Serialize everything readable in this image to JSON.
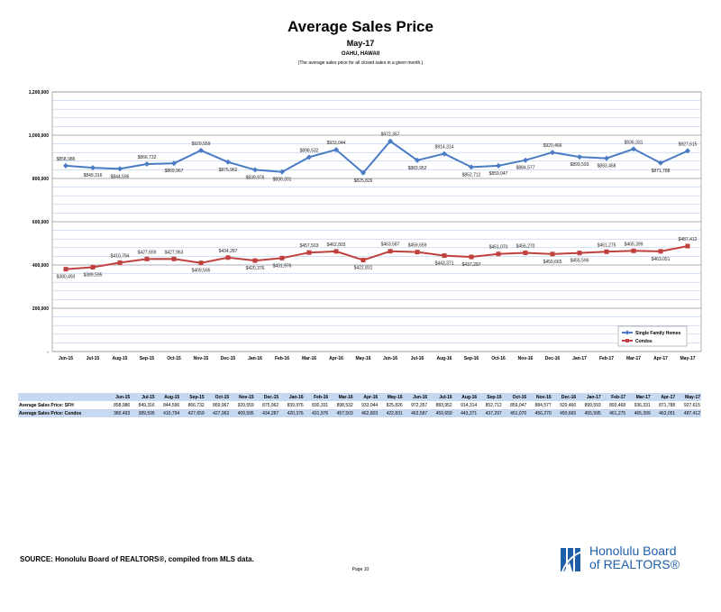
{
  "header": {
    "title": "Average Sales Price",
    "subtitle": "May-17",
    "region": "OAHU, HAWAII",
    "description": "(The average sales price for all closed sales in a given month.)"
  },
  "chart_data": {
    "type": "line",
    "title": "Average Sales Price",
    "categories": [
      "Jun-15",
      "Jul-15",
      "Aug-15",
      "Sep-15",
      "Oct-15",
      "Nov-15",
      "Dec-15",
      "Jan-16",
      "Feb-16",
      "Mar-16",
      "Apr-16",
      "May-16",
      "Jun-16",
      "Jul-16",
      "Aug-16",
      "Sep-16",
      "Oct-16",
      "Nov-16",
      "Dec-16",
      "Jan-17",
      "Feb-17",
      "Mar-17",
      "Apr-17",
      "May-17"
    ],
    "ylim": [
      0,
      1200000
    ],
    "yticks": [
      0,
      200000,
      400000,
      600000,
      800000,
      1000000,
      1200000
    ],
    "ytick_labels": [
      "-",
      "200,000",
      "400,000",
      "600,000",
      "800,000",
      "1,000,000",
      "1,200,000"
    ],
    "legend_position": "lower-right",
    "grid": true,
    "series": [
      {
        "name": "Single Family Homes",
        "color": "#4a7bc4",
        "marker": "diamond",
        "values": [
          858986,
          849316,
          844596,
          866732,
          869967,
          929559,
          875962,
          839976,
          830331,
          898532,
          933044,
          825826,
          972357,
          883952,
          914314,
          852712,
          859047,
          884577,
          920466,
          899593,
          893468,
          936331,
          871788,
          927615
        ],
        "labels": [
          "$858,986",
          "$849,316",
          "$844,596",
          "$866,732",
          "$869,967",
          "$929,559",
          "$875,962",
          "$839,976",
          "$830,331",
          "$898,532",
          "$933,044",
          "$825,826",
          "$972,357",
          "$883,952",
          "$914,314",
          "$852,712",
          "$859,047",
          "$884,577",
          "$920,466",
          "$899,593",
          "$893,468",
          "$936,331",
          "$871,788",
          "$927,615"
        ]
      },
      {
        "name": "Condos",
        "color": "#c0403d",
        "marker": "square",
        "values": [
          380493,
          389595,
          410794,
          427659,
          427963,
          409595,
          434287,
          420376,
          431976,
          457503,
          462803,
          422831,
          463587,
          459659,
          443371,
          437297,
          451070,
          456270,
          450665,
          455595,
          461275,
          465399,
          463051,
          487412
        ],
        "labels": [
          "$380,493",
          "$389,595",
          "$410,794",
          "$427,659",
          "$427,963",
          "$409,595",
          "$434,287",
          "$420,376",
          "$431,976",
          "$457,503",
          "$462,803",
          "$422,831",
          "$463,587",
          "$459,659",
          "$443,371",
          "$437,297",
          "$451,070",
          "$456,270",
          "$450,665",
          "$455,595",
          "$461,275",
          "$465,399",
          "$463,051",
          "$487,412"
        ]
      }
    ]
  },
  "table": {
    "columns": [
      "Jun-15",
      "Jul-15",
      "Aug-15",
      "Sep-15",
      "Oct-15",
      "Nov-15",
      "Dec-15",
      "Jan-16",
      "Feb-16",
      "Mar-16",
      "Apr-16",
      "May-16",
      "Jun-16",
      "Jul-16",
      "Aug-16",
      "Sep-16",
      "Oct-16",
      "Nov-16",
      "Dec-16",
      "Jan-17",
      "Feb-17",
      "Mar-17",
      "Apr-17",
      "May-17"
    ],
    "rows": [
      {
        "label": "Average Sales Price: SFH",
        "cells": [
          "858,986",
          "849,316",
          "844,596",
          "866,732",
          "869,967",
          "929,559",
          "875,962",
          "839,976",
          "830,331",
          "898,532",
          "933,044",
          "825,826",
          "972,357",
          "883,952",
          "914,314",
          "852,712",
          "859,047",
          "884,577",
          "920,466",
          "899,593",
          "893,468",
          "936,331",
          "871,788",
          "927,615"
        ]
      },
      {
        "label": "Average Sales Price: Condos",
        "cells": [
          "380,493",
          "389,595",
          "410,794",
          "427,659",
          "427,963",
          "409,595",
          "434,287",
          "420,376",
          "431,976",
          "457,503",
          "462,803",
          "422,831",
          "463,587",
          "459,659",
          "443,371",
          "437,297",
          "451,070",
          "456,270",
          "450,665",
          "455,595",
          "461,275",
          "465,399",
          "463,051",
          "487,412"
        ]
      }
    ]
  },
  "footer": {
    "source": "SOURCE:  Honolulu Board of REALTORS®, compiled from MLS data.",
    "page": "Page 10",
    "logo_line1": "Honolulu Board",
    "logo_line2": "of REALTORS®"
  }
}
